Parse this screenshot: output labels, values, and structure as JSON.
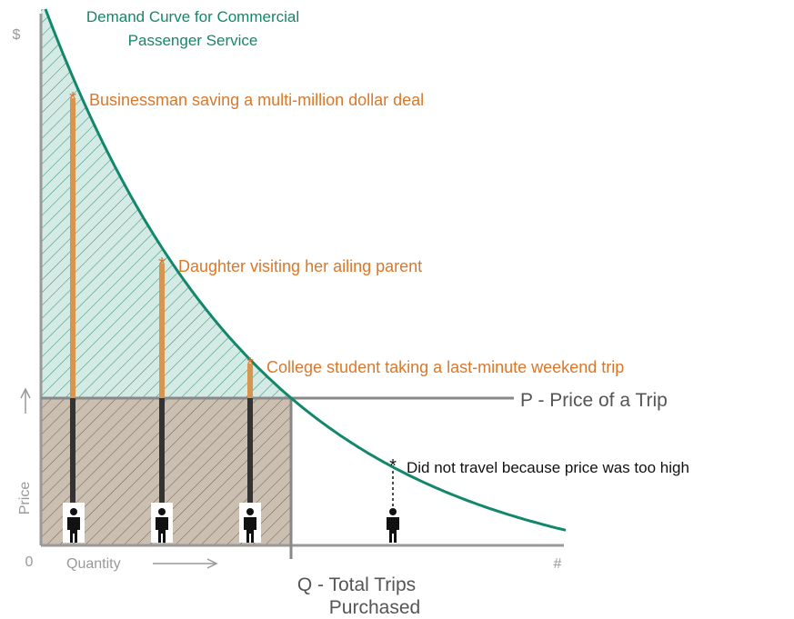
{
  "title": [
    "Demand Curve for Commercial",
    "Passenger Service"
  ],
  "axes": {
    "y_symbol": "$",
    "y_label": "Price",
    "origin": "0",
    "x_label": "Quantity",
    "x_symbol": "#"
  },
  "lines": {
    "price": "P - Price of a Trip",
    "quantity": [
      "Q - Total Trips",
      "Purchased"
    ]
  },
  "annotations": [
    "Businessman saving a multi-million dollar deal",
    "Daughter visiting her ailing parent",
    "College student taking a last-minute weekend trip",
    "Did not travel because price was too high"
  ]
}
